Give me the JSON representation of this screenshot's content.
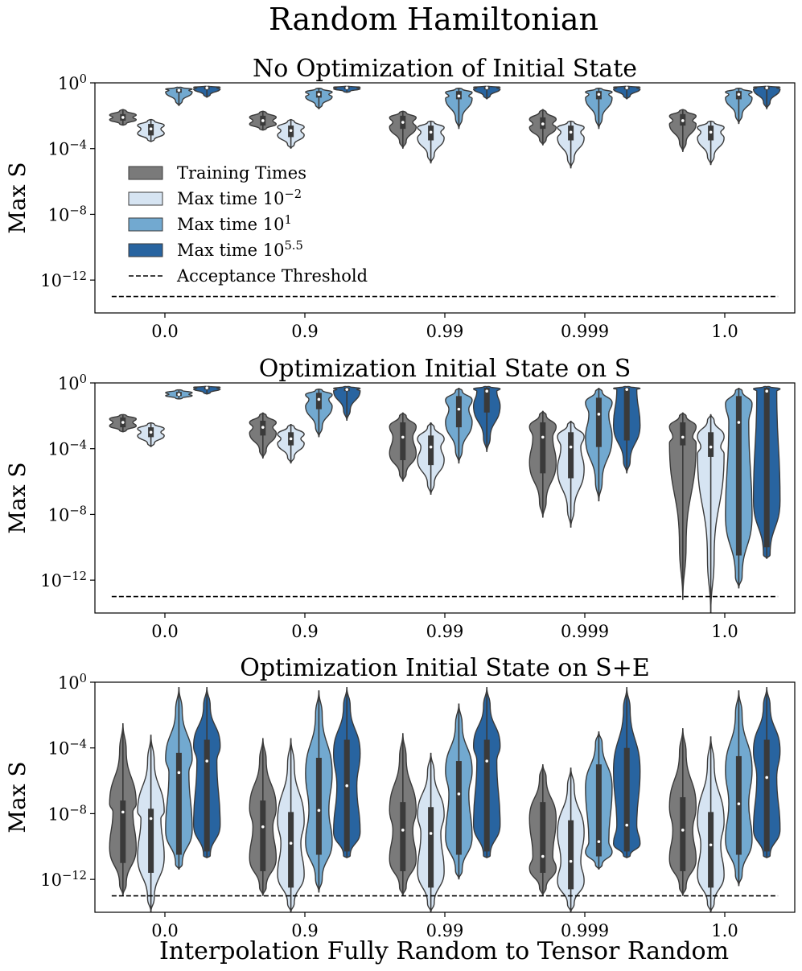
{
  "suptitle": "Random Hamiltonian",
  "shared_xlabel": "Interpolation Fully Random to Tensor Random",
  "legend": [
    {
      "label": "Training Times",
      "color": "#7a7a7a"
    },
    {
      "label": "Max time 10",
      "sup": "−2",
      "color": "#d6e4f2"
    },
    {
      "label": "Max time 10",
      "sup": "1",
      "color": "#72a9d0"
    },
    {
      "label": "Max time 10",
      "sup": "5.5",
      "color": "#2864a0"
    },
    {
      "label": "Acceptance Threshold",
      "style": "dashed"
    }
  ],
  "colors": {
    "training": "#7a7a7a",
    "t_em2": "#d6e4f2",
    "t_1": "#72a9d0",
    "t_55": "#2864a0",
    "edge": "#3a3a3a"
  },
  "chart_data": [
    {
      "type": "violin",
      "title": "No Optimization of Initial State",
      "ylabel": "Max S",
      "yscale": "log",
      "ylim_exp": [
        -14,
        0
      ],
      "yticks": [
        {
          "label": "10",
          "exp": "0"
        },
        {
          "label": "10",
          "exp": "−4"
        },
        {
          "label": "10",
          "exp": "−8"
        },
        {
          "label": "10",
          "exp": "−12"
        }
      ],
      "categories": [
        "0.0",
        "0.9",
        "0.99",
        "0.999",
        "1.0"
      ],
      "threshold_log10": -13,
      "series": [
        {
          "name": "Training Times",
          "groups": [
            {
              "median": -2.1,
              "q1": -2.3,
              "q3": -1.9,
              "min": -2.6,
              "max": -1.6
            },
            {
              "median": -2.3,
              "q1": -2.6,
              "q3": -2.0,
              "min": -2.9,
              "max": -1.7
            },
            {
              "median": -2.4,
              "q1": -2.8,
              "q3": -2.0,
              "min": -4.0,
              "max": -1.7
            },
            {
              "median": -2.5,
              "q1": -2.8,
              "q3": -2.1,
              "min": -3.8,
              "max": -1.6
            },
            {
              "median": -2.3,
              "q1": -2.6,
              "q3": -1.9,
              "min": -4.2,
              "max": -1.6
            }
          ]
        },
        {
          "name": "Max time 10^-2",
          "groups": [
            {
              "median": -2.8,
              "q1": -3.2,
              "q3": -2.5,
              "min": -3.6,
              "max": -2.2
            },
            {
              "median": -2.9,
              "q1": -3.3,
              "q3": -2.6,
              "min": -4.0,
              "max": -2.2
            },
            {
              "median": -3.0,
              "q1": -3.5,
              "q3": -2.6,
              "min": -4.9,
              "max": -2.3
            },
            {
              "median": -3.0,
              "q1": -3.5,
              "q3": -2.6,
              "min": -5.2,
              "max": -2.3
            },
            {
              "median": -3.0,
              "q1": -3.5,
              "q3": -2.6,
              "min": -5.0,
              "max": -2.3
            }
          ]
        },
        {
          "name": "Max time 10^1",
          "groups": [
            {
              "median": -0.45,
              "q1": -0.6,
              "q3": -0.35,
              "min": -1.4,
              "max": -0.25
            },
            {
              "median": -0.7,
              "q1": -0.9,
              "q3": -0.5,
              "min": -1.6,
              "max": -0.3
            },
            {
              "median": -0.8,
              "q1": -1.0,
              "q3": -0.5,
              "min": -2.8,
              "max": -0.3
            },
            {
              "median": -0.7,
              "q1": -1.0,
              "q3": -0.5,
              "min": -2.8,
              "max": -0.3
            },
            {
              "median": -0.7,
              "q1": -1.0,
              "q3": -0.5,
              "min": -2.5,
              "max": -0.3
            }
          ]
        },
        {
          "name": "Max time 10^5.5",
          "groups": [
            {
              "median": -0.3,
              "q1": -0.4,
              "q3": -0.25,
              "min": -0.9,
              "max": -0.2
            },
            {
              "median": -0.3,
              "q1": -0.38,
              "q3": -0.25,
              "min": -0.6,
              "max": -0.2
            },
            {
              "median": -0.3,
              "q1": -0.4,
              "q3": -0.25,
              "min": -1.0,
              "max": -0.2
            },
            {
              "median": -0.3,
              "q1": -0.4,
              "q3": -0.25,
              "min": -1.0,
              "max": -0.2
            },
            {
              "median": -0.3,
              "q1": -0.4,
              "q3": -0.25,
              "min": -1.6,
              "max": -0.2
            }
          ]
        }
      ]
    },
    {
      "type": "violin",
      "title": "Optimization Initial State on S",
      "ylabel": "Max S",
      "yscale": "log",
      "ylim_exp": [
        -14,
        0
      ],
      "yticks": [
        {
          "label": "10",
          "exp": "0"
        },
        {
          "label": "10",
          "exp": "−4"
        },
        {
          "label": "10",
          "exp": "−8"
        },
        {
          "label": "10",
          "exp": "−12"
        }
      ],
      "categories": [
        "0.0",
        "0.9",
        "0.99",
        "0.999",
        "1.0"
      ],
      "threshold_log10": -13,
      "series": [
        {
          "name": "Training Times",
          "groups": [
            {
              "median": -2.4,
              "q1": -2.7,
              "q3": -2.1,
              "min": -3.0,
              "max": -1.9
            },
            {
              "median": -2.7,
              "q1": -3.2,
              "q3": -2.3,
              "min": -4.6,
              "max": -1.8
            },
            {
              "median": -3.3,
              "q1": -4.7,
              "q3": -2.4,
              "min": -6.0,
              "max": -1.8
            },
            {
              "median": -3.3,
              "q1": -5.5,
              "q3": -2.4,
              "min": -8.2,
              "max": -1.7
            },
            {
              "median": -3.3,
              "q1": -3.8,
              "q3": -2.4,
              "min": -13.2,
              "max": -1.8
            }
          ]
        },
        {
          "name": "Max time 10^-2",
          "groups": [
            {
              "median": -3.0,
              "q1": -3.3,
              "q3": -2.7,
              "min": -3.9,
              "max": -2.4
            },
            {
              "median": -3.4,
              "q1": -3.8,
              "q3": -3.0,
              "min": -4.9,
              "max": -2.5
            },
            {
              "median": -3.9,
              "q1": -5.0,
              "q3": -3.2,
              "min": -6.8,
              "max": -2.4
            },
            {
              "median": -3.9,
              "q1": -5.8,
              "q3": -3.0,
              "min": -8.8,
              "max": -2.3
            },
            {
              "median": -3.9,
              "q1": -4.5,
              "q3": -3.0,
              "min": -14.0,
              "max": -1.9
            }
          ]
        },
        {
          "name": "Max time 10^1",
          "groups": [
            {
              "median": -0.7,
              "q1": -0.8,
              "q3": -0.55,
              "min": -1.0,
              "max": -0.4
            },
            {
              "median": -1.0,
              "q1": -1.6,
              "q3": -0.6,
              "min": -3.3,
              "max": -0.35
            },
            {
              "median": -1.6,
              "q1": -2.7,
              "q3": -0.8,
              "min": -4.9,
              "max": -0.3
            },
            {
              "median": -1.9,
              "q1": -3.9,
              "q3": -0.9,
              "min": -7.2,
              "max": -0.3
            },
            {
              "median": -2.4,
              "q1": -10.5,
              "q3": -0.8,
              "min": -12.5,
              "max": -0.3
            }
          ]
        },
        {
          "name": "Max time 10^5.5",
          "groups": [
            {
              "median": -0.3,
              "q1": -0.4,
              "q3": -0.25,
              "min": -0.7,
              "max": -0.2
            },
            {
              "median": -0.4,
              "q1": -0.5,
              "q3": -0.3,
              "min": -2.3,
              "max": -0.2
            },
            {
              "median": -0.5,
              "q1": -1.8,
              "q3": -0.3,
              "min": -4.2,
              "max": -0.2
            },
            {
              "median": -0.4,
              "q1": -3.5,
              "q3": -0.3,
              "min": -5.5,
              "max": -0.2
            },
            {
              "median": -0.5,
              "q1": -10.0,
              "q3": -0.3,
              "min": -10.7,
              "max": -0.2
            }
          ]
        }
      ]
    },
    {
      "type": "violin",
      "title": "Optimization Initial State on S+E",
      "ylabel": "Max S",
      "yscale": "log",
      "ylim_exp": [
        -14,
        0
      ],
      "yticks": [
        {
          "label": "10",
          "exp": "0"
        },
        {
          "label": "10",
          "exp": "−4"
        },
        {
          "label": "10",
          "exp": "−8"
        },
        {
          "label": "10",
          "exp": "−12"
        }
      ],
      "categories": [
        "0.0",
        "0.9",
        "0.99",
        "0.999",
        "1.0"
      ],
      "threshold_log10": -13,
      "series": [
        {
          "name": "Training Times",
          "groups": [
            {
              "median": -7.9,
              "q1": -11.0,
              "q3": -7.2,
              "min": -13.0,
              "max": -2.5
            },
            {
              "median": -8.8,
              "q1": -11.5,
              "q3": -7.2,
              "min": -13.0,
              "max": -3.4
            },
            {
              "median": -9.0,
              "q1": -11.5,
              "q3": -7.3,
              "min": -13.0,
              "max": -3.1
            },
            {
              "median": -10.6,
              "q1": -11.6,
              "q3": -7.3,
              "min": -13.0,
              "max": -5.0
            },
            {
              "median": -9.0,
              "q1": -11.5,
              "q3": -7.0,
              "min": -13.0,
              "max": -2.8
            }
          ]
        },
        {
          "name": "Max time 10^-2",
          "groups": [
            {
              "median": -8.3,
              "q1": -11.6,
              "q3": -7.7,
              "min": -14.0,
              "max": -3.2
            },
            {
              "median": -9.8,
              "q1": -12.5,
              "q3": -7.9,
              "min": -14.0,
              "max": -3.4
            },
            {
              "median": -9.2,
              "q1": -12.5,
              "q3": -7.6,
              "min": -14.0,
              "max": -4.3
            },
            {
              "median": -10.9,
              "q1": -12.6,
              "q3": -8.4,
              "min": -14.0,
              "max": -5.2
            },
            {
              "median": -9.9,
              "q1": -12.5,
              "q3": -7.9,
              "min": -14.0,
              "max": -3.3
            }
          ]
        },
        {
          "name": "Max time 10^1",
          "groups": [
            {
              "median": -5.5,
              "q1": -10.5,
              "q3": -4.3,
              "min": -11.4,
              "max": -0.3
            },
            {
              "median": -7.8,
              "q1": -10.5,
              "q3": -4.6,
              "min": -12.8,
              "max": -0.5
            },
            {
              "median": -6.8,
              "q1": -10.5,
              "q3": -4.8,
              "min": -12.0,
              "max": -1.3
            },
            {
              "median": -9.7,
              "q1": -10.6,
              "q3": -5.0,
              "min": -11.4,
              "max": -3.0
            },
            {
              "median": -7.4,
              "q1": -10.5,
              "q3": -4.5,
              "min": -12.4,
              "max": -0.5
            }
          ]
        },
        {
          "name": "Max time 10^5.5",
          "groups": [
            {
              "median": -4.8,
              "q1": -10.3,
              "q3": -3.5,
              "min": -10.7,
              "max": -0.3
            },
            {
              "median": -6.3,
              "q1": -10.3,
              "q3": -3.5,
              "min": -10.7,
              "max": -0.3
            },
            {
              "median": -4.8,
              "q1": -10.3,
              "q3": -3.5,
              "min": -10.7,
              "max": -0.3
            },
            {
              "median": -8.7,
              "q1": -10.3,
              "q3": -4.0,
              "min": -10.7,
              "max": -0.3
            },
            {
              "median": -5.8,
              "q1": -10.3,
              "q3": -3.5,
              "min": -10.7,
              "max": -0.3
            }
          ]
        }
      ]
    }
  ]
}
